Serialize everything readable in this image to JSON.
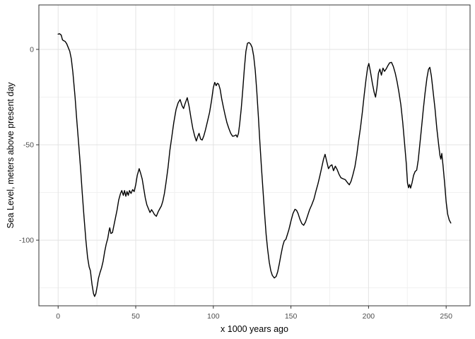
{
  "figure": {
    "background": "#ffffff"
  },
  "chart_data": {
    "type": "line",
    "title": "",
    "xlabel": "x 1000 years ago",
    "ylabel": "Sea Level, meters above present day",
    "x_ticks": [
      0,
      50,
      100,
      150,
      200,
      250
    ],
    "y_ticks": [
      0,
      -50,
      -100
    ],
    "x_minor_ticks": [
      25,
      75,
      125,
      175,
      225
    ],
    "y_minor_ticks": [
      -25,
      -75,
      -125
    ],
    "xlim": [
      -12.4,
      265.4
    ],
    "ylim": [
      -134.4,
      23.3
    ],
    "grid": true,
    "legend_position": "none",
    "line_color": "#000000",
    "panel_background": "#ffffff",
    "panel_border_color": "#333333",
    "major_grid_color": "#e3e3e3",
    "minor_grid_color": "#f1f1f1",
    "tick_mark_color": "#333333",
    "tick_label_color": "#4d4d4d",
    "series": [
      {
        "name": "sea-level",
        "points": [
          [
            0,
            8
          ],
          [
            1,
            8.2
          ],
          [
            2,
            7.5
          ],
          [
            2.8,
            5
          ],
          [
            3.5,
            4.6
          ],
          [
            4.5,
            4.2
          ],
          [
            5.5,
            3
          ],
          [
            6.5,
            1
          ],
          [
            7.5,
            -1
          ],
          [
            8.5,
            -5
          ],
          [
            9.5,
            -12
          ],
          [
            10.9,
            -25
          ],
          [
            12,
            -37
          ],
          [
            13.3,
            -50
          ],
          [
            14.5,
            -63
          ],
          [
            15.5,
            -75
          ],
          [
            16.7,
            -88
          ],
          [
            17.9,
            -100
          ],
          [
            19,
            -109
          ],
          [
            20,
            -114
          ],
          [
            20.8,
            -116
          ],
          [
            21.8,
            -123
          ],
          [
            22.8,
            -128
          ],
          [
            23.5,
            -129.5
          ],
          [
            24.3,
            -128
          ],
          [
            25.2,
            -124
          ],
          [
            26,
            -120
          ],
          [
            27,
            -117
          ],
          [
            28,
            -114.5
          ],
          [
            29,
            -111
          ],
          [
            30,
            -106
          ],
          [
            31,
            -102
          ],
          [
            32,
            -99
          ],
          [
            32.8,
            -95
          ],
          [
            33.3,
            -93.5
          ],
          [
            34,
            -96.5
          ],
          [
            35,
            -96
          ],
          [
            36,
            -92
          ],
          [
            37,
            -88
          ],
          [
            38,
            -84
          ],
          [
            39,
            -79
          ],
          [
            40.2,
            -75.5
          ],
          [
            41,
            -74
          ],
          [
            42,
            -76.5
          ],
          [
            42.8,
            -74
          ],
          [
            43.6,
            -77
          ],
          [
            44.4,
            -74.5
          ],
          [
            45.2,
            -76.5
          ],
          [
            46,
            -74
          ],
          [
            47,
            -75.5
          ],
          [
            48,
            -73.5
          ],
          [
            49,
            -74.5
          ],
          [
            50,
            -71
          ],
          [
            51,
            -66
          ],
          [
            52.2,
            -62.5
          ],
          [
            53.2,
            -65
          ],
          [
            54.2,
            -68
          ],
          [
            55.2,
            -73
          ],
          [
            56.2,
            -78
          ],
          [
            57.2,
            -81.5
          ],
          [
            58.2,
            -83.5
          ],
          [
            59.2,
            -85.5
          ],
          [
            60.2,
            -84
          ],
          [
            61,
            -85
          ],
          [
            62,
            -86.5
          ],
          [
            63.3,
            -87.5
          ],
          [
            64.5,
            -85
          ],
          [
            65.5,
            -83.5
          ],
          [
            66.5,
            -82
          ],
          [
            67.5,
            -79.5
          ],
          [
            68.5,
            -75.5
          ],
          [
            69.5,
            -70
          ],
          [
            70.8,
            -62
          ],
          [
            72,
            -53
          ],
          [
            73.2,
            -46
          ],
          [
            74.5,
            -38.5
          ],
          [
            76,
            -31.5
          ],
          [
            77.3,
            -28
          ],
          [
            78.6,
            -26.3
          ],
          [
            79.8,
            -29.5
          ],
          [
            80.8,
            -31
          ],
          [
            81.8,
            -28.5
          ],
          [
            83.2,
            -25.3
          ],
          [
            84.4,
            -30
          ],
          [
            85.6,
            -36
          ],
          [
            86.8,
            -41.5
          ],
          [
            88,
            -45.5
          ],
          [
            89,
            -48
          ],
          [
            90,
            -45.5
          ],
          [
            90.8,
            -44
          ],
          [
            91.8,
            -47
          ],
          [
            92.8,
            -47.5
          ],
          [
            93.8,
            -45.5
          ],
          [
            95,
            -42
          ],
          [
            96.3,
            -37.5
          ],
          [
            97.6,
            -33
          ],
          [
            98.8,
            -27
          ],
          [
            100,
            -20
          ],
          [
            100.9,
            -17.3
          ],
          [
            101.8,
            -19
          ],
          [
            102.6,
            -17.8
          ],
          [
            103.4,
            -18.2
          ],
          [
            104.4,
            -21
          ],
          [
            105.4,
            -26
          ],
          [
            106.4,
            -30
          ],
          [
            107.6,
            -34.5
          ],
          [
            108.8,
            -38.5
          ],
          [
            110,
            -41.5
          ],
          [
            111.2,
            -44
          ],
          [
            112.4,
            -45.5
          ],
          [
            113.6,
            -45.3
          ],
          [
            114.6,
            -44.8
          ],
          [
            115.4,
            -46
          ],
          [
            116.2,
            -44
          ],
          [
            117,
            -39
          ],
          [
            118,
            -31
          ],
          [
            119,
            -21
          ],
          [
            120,
            -10
          ],
          [
            121,
            -1
          ],
          [
            122,
            3.2
          ],
          [
            123,
            3.6
          ],
          [
            124,
            2.8
          ],
          [
            125,
            1
          ],
          [
            126,
            -3.5
          ],
          [
            127,
            -11
          ],
          [
            128,
            -22
          ],
          [
            129,
            -35
          ],
          [
            130,
            -49
          ],
          [
            131,
            -62
          ],
          [
            132,
            -74
          ],
          [
            133,
            -86
          ],
          [
            134,
            -97
          ],
          [
            135,
            -105
          ],
          [
            136,
            -111.5
          ],
          [
            137,
            -116
          ],
          [
            138,
            -118.5
          ],
          [
            139.3,
            -119.8
          ],
          [
            140.5,
            -119
          ],
          [
            141.5,
            -116.5
          ],
          [
            142.5,
            -112.5
          ],
          [
            143.5,
            -108
          ],
          [
            144.7,
            -103
          ],
          [
            145.7,
            -100.3
          ],
          [
            146.7,
            -99.6
          ],
          [
            147.7,
            -97
          ],
          [
            148.7,
            -94.5
          ],
          [
            150,
            -90
          ],
          [
            151.3,
            -86
          ],
          [
            152.6,
            -83.8
          ],
          [
            153.6,
            -84.3
          ],
          [
            154.6,
            -86
          ],
          [
            155.8,
            -89
          ],
          [
            157,
            -91.3
          ],
          [
            158.2,
            -92.2
          ],
          [
            159.4,
            -90.5
          ],
          [
            160.6,
            -87.5
          ],
          [
            162,
            -84
          ],
          [
            163.4,
            -81.5
          ],
          [
            164.8,
            -78.5
          ],
          [
            166.2,
            -74
          ],
          [
            167.4,
            -70.5
          ],
          [
            168.6,
            -66.5
          ],
          [
            169.8,
            -62
          ],
          [
            171,
            -57.5
          ],
          [
            172,
            -55
          ],
          [
            173,
            -58.5
          ],
          [
            174.2,
            -62.5
          ],
          [
            175.4,
            -61
          ],
          [
            176.4,
            -60.5
          ],
          [
            177.4,
            -63.6
          ],
          [
            178.6,
            -61.2
          ],
          [
            179.8,
            -63
          ],
          [
            181,
            -65.5
          ],
          [
            182.2,
            -67.3
          ],
          [
            183.6,
            -67.8
          ],
          [
            185,
            -68.3
          ],
          [
            186.4,
            -69.8
          ],
          [
            187.6,
            -71
          ],
          [
            188.8,
            -69
          ],
          [
            190,
            -65.5
          ],
          [
            191.2,
            -61.5
          ],
          [
            192.4,
            -55.5
          ],
          [
            193.6,
            -48
          ],
          [
            194.8,
            -41
          ],
          [
            196,
            -33
          ],
          [
            197.2,
            -24
          ],
          [
            198.4,
            -15.5
          ],
          [
            199.4,
            -9.5
          ],
          [
            200.2,
            -7.4
          ],
          [
            201.2,
            -11.5
          ],
          [
            202.4,
            -17.5
          ],
          [
            203.6,
            -22.5
          ],
          [
            204.5,
            -25
          ],
          [
            205.4,
            -20
          ],
          [
            206.4,
            -12.5
          ],
          [
            207.3,
            -10.3
          ],
          [
            208.3,
            -13.5
          ],
          [
            209.3,
            -9.8
          ],
          [
            210.3,
            -11.5
          ],
          [
            211.3,
            -10.3
          ],
          [
            212.5,
            -8.5
          ],
          [
            213.6,
            -7
          ],
          [
            214.8,
            -6.8
          ],
          [
            216,
            -9
          ],
          [
            217.2,
            -12.5
          ],
          [
            218.4,
            -17
          ],
          [
            219.6,
            -22.5
          ],
          [
            220.8,
            -29
          ],
          [
            222,
            -38
          ],
          [
            223.2,
            -49
          ],
          [
            224.3,
            -60
          ],
          [
            225.1,
            -70
          ],
          [
            225.8,
            -72.5
          ],
          [
            226.4,
            -70.8
          ],
          [
            227.1,
            -72.7
          ],
          [
            228,
            -70
          ],
          [
            229,
            -66
          ],
          [
            230,
            -64
          ],
          [
            231,
            -63.3
          ],
          [
            232,
            -58
          ],
          [
            233,
            -50
          ],
          [
            234,
            -42
          ],
          [
            235.2,
            -32
          ],
          [
            236.4,
            -23
          ],
          [
            237.6,
            -15
          ],
          [
            238.6,
            -10.5
          ],
          [
            239.5,
            -9.4
          ],
          [
            240.5,
            -14
          ],
          [
            241.6,
            -22
          ],
          [
            242.8,
            -31
          ],
          [
            244,
            -41.5
          ],
          [
            245.2,
            -50
          ],
          [
            246,
            -55.5
          ],
          [
            246.6,
            -57.5
          ],
          [
            247.2,
            -54.5
          ],
          [
            248,
            -61
          ],
          [
            249,
            -70
          ],
          [
            250,
            -80
          ],
          [
            251,
            -86.5
          ],
          [
            252,
            -89.5
          ],
          [
            253,
            -91
          ]
        ]
      }
    ]
  }
}
